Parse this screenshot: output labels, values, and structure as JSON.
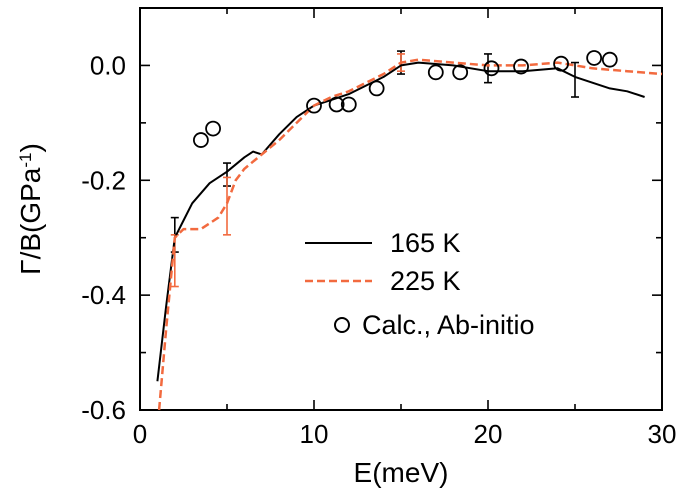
{
  "chart_data": {
    "type": "line",
    "title": "",
    "xlabel": "E(meV)",
    "ylabel": "Γ/B(GPa",
    "ylabel_superscript": "-1",
    "ylabel_close": ")",
    "xlim": [
      0,
      30
    ],
    "ylim": [
      -0.6,
      0.1
    ],
    "xticks": [
      0,
      10,
      20,
      30
    ],
    "xtick_labels": [
      "0",
      "10",
      "20",
      "30"
    ],
    "yticks": [
      -0.6,
      -0.4,
      -0.2,
      0.0
    ],
    "ytick_labels": [
      "-0.6",
      "-0.4",
      "-0.2",
      "0.0"
    ],
    "grid": false,
    "legend_position": "lower-right",
    "series": [
      {
        "name": "165 K",
        "style": "solid",
        "color": "#000000",
        "x": [
          1.0,
          1.5,
          2.0,
          2.5,
          3.0,
          4.0,
          5.0,
          6.0,
          6.5,
          7.0,
          8.0,
          9.0,
          10.0,
          11.0,
          12.0,
          13.0,
          14.0,
          15.0,
          16.0,
          18.0,
          20.0,
          22.0,
          24.0,
          25.0,
          26.0,
          27.0,
          28.0,
          29.0
        ],
        "y": [
          -0.55,
          -0.42,
          -0.3,
          -0.27,
          -0.24,
          -0.205,
          -0.185,
          -0.16,
          -0.15,
          -0.155,
          -0.12,
          -0.09,
          -0.07,
          -0.06,
          -0.05,
          -0.035,
          -0.02,
          0.0,
          0.005,
          0.0,
          -0.01,
          -0.01,
          -0.005,
          -0.02,
          -0.03,
          -0.04,
          -0.045,
          -0.055
        ]
      },
      {
        "name": "225 K",
        "style": "dashed",
        "color": "#f26a3f",
        "x": [
          1.1,
          1.5,
          2.0,
          2.5,
          3.5,
          4.5,
          5.0,
          5.5,
          6.0,
          7.0,
          8.0,
          9.0,
          10.0,
          11.0,
          12.0,
          13.0,
          14.0,
          15.0,
          16.0,
          18.0,
          20.0,
          22.0,
          24.0,
          25.0,
          26.0,
          28.0,
          30.0
        ],
        "y": [
          -0.6,
          -0.46,
          -0.3,
          -0.285,
          -0.285,
          -0.265,
          -0.24,
          -0.2,
          -0.18,
          -0.155,
          -0.13,
          -0.1,
          -0.07,
          -0.055,
          -0.045,
          -0.03,
          -0.015,
          0.005,
          0.01,
          0.005,
          0.0,
          0.0,
          0.005,
          0.0,
          -0.005,
          -0.01,
          -0.015
        ]
      },
      {
        "name": "Calc., Ab-initio",
        "style": "markers",
        "color": "#000000",
        "x": [
          3.5,
          4.2,
          10.0,
          11.3,
          12.0,
          13.6,
          17.0,
          18.4,
          20.2,
          21.9,
          24.2,
          26.1,
          27.0
        ],
        "y": [
          -0.13,
          -0.11,
          -0.07,
          -0.068,
          -0.068,
          -0.04,
          -0.012,
          -0.012,
          -0.005,
          -0.002,
          0.003,
          0.013,
          0.01
        ]
      }
    ],
    "error_bars": [
      {
        "x": 2.0,
        "y": -0.295,
        "yerr": 0.03,
        "color": "#000000"
      },
      {
        "x": 5.0,
        "y": -0.19,
        "yerr": 0.02,
        "color": "#000000"
      },
      {
        "x": 15.0,
        "y": 0.005,
        "yerr": 0.02,
        "color": "#000000"
      },
      {
        "x": 20.0,
        "y": -0.005,
        "yerr": 0.025,
        "color": "#000000"
      },
      {
        "x": 25.0,
        "y": -0.025,
        "yerr": 0.03,
        "color": "#000000"
      },
      {
        "x": 2.0,
        "y": -0.34,
        "yerr": 0.045,
        "color": "#f26a3f"
      },
      {
        "x": 5.0,
        "y": -0.245,
        "yerr": 0.05,
        "color": "#f26a3f"
      },
      {
        "x": 15.0,
        "y": 0.005,
        "yerr": 0.015,
        "color": "#f26a3f"
      }
    ]
  }
}
